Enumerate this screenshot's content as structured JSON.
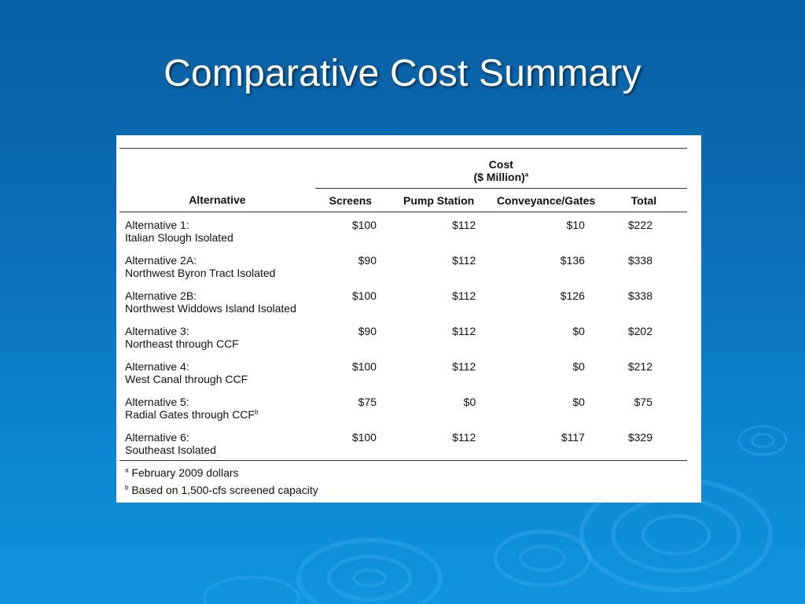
{
  "slide": {
    "title": "Comparative Cost Summary"
  },
  "table": {
    "cost_header": "Cost",
    "cost_subheader": "($ Million)",
    "cost_subheader_note": "a",
    "columns": {
      "alternative": "Alternative",
      "screens": "Screens",
      "pump_station": "Pump Station",
      "conveyance_gates": "Conveyance/Gates",
      "total": "Total"
    },
    "rows": [
      {
        "name": "Alternative 1:",
        "desc": "Italian Slough Isolated",
        "desc_note": "",
        "screens": "$100",
        "pump_station": "$112",
        "conveyance_gates": "$10",
        "total": "$222"
      },
      {
        "name": "Alternative 2A:",
        "desc": "Northwest Byron Tract Isolated",
        "desc_note": "",
        "screens": "$90",
        "pump_station": "$112",
        "conveyance_gates": "$136",
        "total": "$338"
      },
      {
        "name": "Alternative 2B:",
        "desc": "Northwest Widdows Island Isolated",
        "desc_note": "",
        "screens": "$100",
        "pump_station": "$112",
        "conveyance_gates": "$126",
        "total": "$338"
      },
      {
        "name": "Alternative 3:",
        "desc": "Northeast through CCF",
        "desc_note": "",
        "screens": "$90",
        "pump_station": "$112",
        "conveyance_gates": "$0",
        "total": "$202"
      },
      {
        "name": "Alternative 4:",
        "desc": "West Canal through CCF",
        "desc_note": "",
        "screens": "$100",
        "pump_station": "$112",
        "conveyance_gates": "$0",
        "total": "$212"
      },
      {
        "name": "Alternative 5:",
        "desc": "Radial Gates through CCF",
        "desc_note": "b",
        "screens": "$75",
        "pump_station": "$0",
        "conveyance_gates": "$0",
        "total": "$75"
      },
      {
        "name": "Alternative 6:",
        "desc": "Southeast Isolated",
        "desc_note": "",
        "screens": "$100",
        "pump_station": "$112",
        "conveyance_gates": "$117",
        "total": "$329"
      }
    ],
    "footnotes": [
      {
        "mark": "a",
        "text": "February 2009 dollars"
      },
      {
        "mark": "b",
        "text": "Based on 1,500-cfs screened capacity"
      }
    ]
  },
  "colors": {
    "background_top": "#0a5fa3",
    "background_bottom": "#0f95e0",
    "title_text": "#ffffff",
    "panel": "#ffffff"
  }
}
